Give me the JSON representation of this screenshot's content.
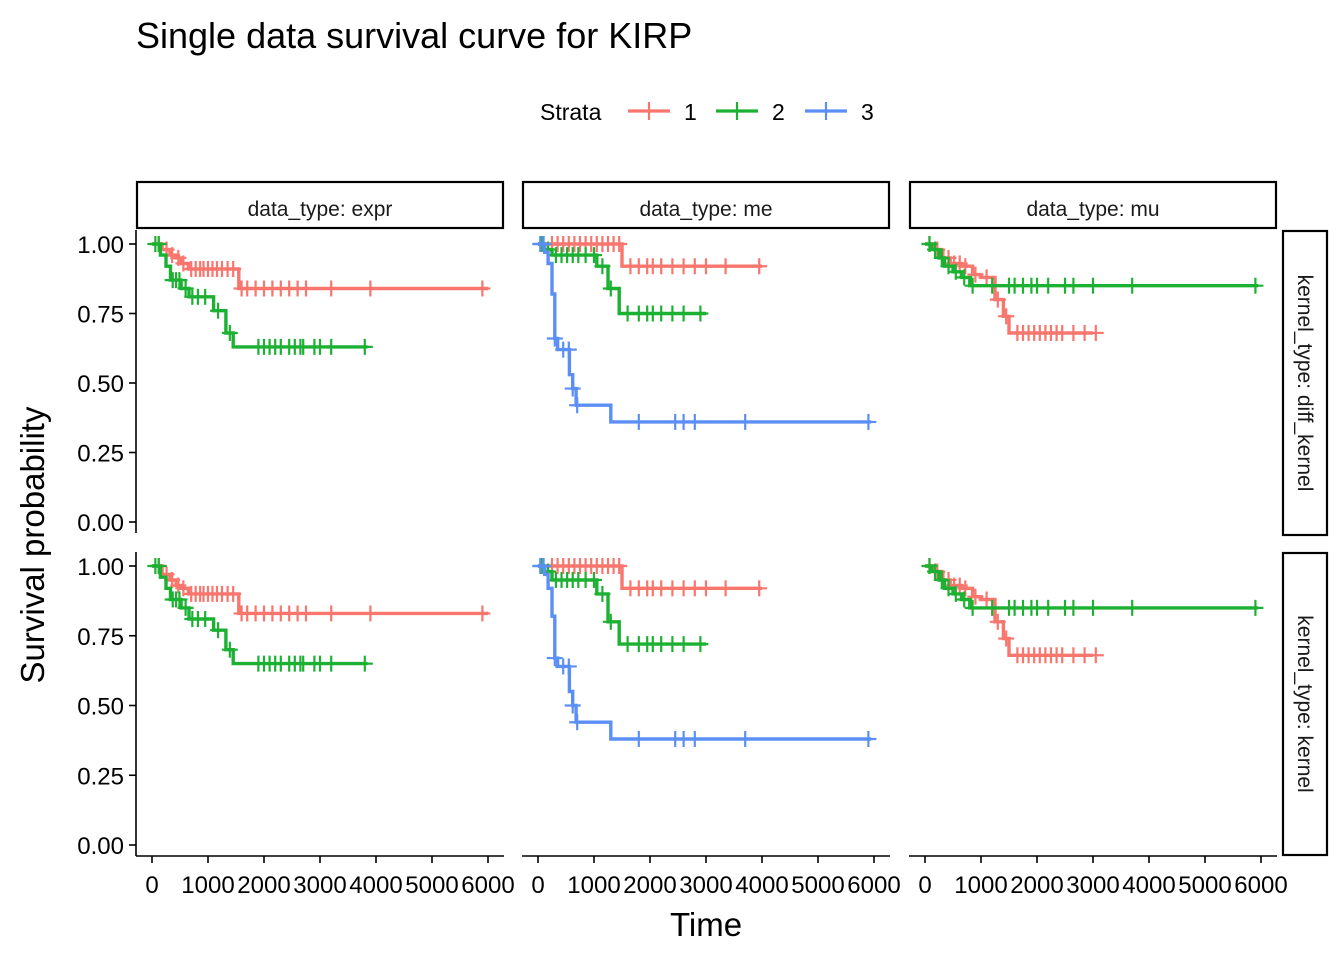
{
  "chart_data": {
    "type": "line",
    "title": "Single data survival curve for KIRP",
    "xlabel": "Time",
    "ylabel": "Survival probability",
    "xlim": [
      0,
      6000
    ],
    "ylim": [
      0,
      1
    ],
    "xticks": [
      "0",
      "1000",
      "2000",
      "3000",
      "4000",
      "5000",
      "6000"
    ],
    "yticks": [
      "0.00",
      "0.25",
      "0.50",
      "0.75",
      "1.00"
    ],
    "legend": {
      "title": "Strata",
      "position": "top",
      "items": [
        {
          "label": "1",
          "color": "#F8766D"
        },
        {
          "label": "2",
          "color": "#1DB133"
        },
        {
          "label": "3",
          "color": "#5B8FF5"
        }
      ]
    },
    "facet_cols": [
      "data_type: expr",
      "data_type: me",
      "data_type: mu"
    ],
    "facet_rows": [
      "kernel_type: diff_kernel",
      "kernel_type: kernel"
    ],
    "panels": [
      {
        "row": 0,
        "col": 0,
        "series": [
          {
            "name": "1",
            "steps": [
              [
                0,
                1.0
              ],
              [
                180,
                0.98
              ],
              [
                320,
                0.96
              ],
              [
                430,
                0.95
              ],
              [
                520,
                0.93
              ],
              [
                650,
                0.91
              ],
              [
                1550,
                0.84
              ],
              [
                6000,
                0.84
              ]
            ],
            "censors": [
              120,
              260,
              360,
              470,
              560,
              700,
              780,
              860,
              920,
              1000,
              1080,
              1160,
              1250,
              1350,
              1450,
              1600,
              1700,
              1850,
              2000,
              2150,
              2300,
              2450,
              2600,
              2750,
              3200,
              3900,
              5900
            ]
          },
          {
            "name": "2",
            "steps": [
              [
                0,
                1.0
              ],
              [
                150,
                0.96
              ],
              [
                250,
                0.92
              ],
              [
                330,
                0.87
              ],
              [
                520,
                0.84
              ],
              [
                660,
                0.81
              ],
              [
                1100,
                0.76
              ],
              [
                1320,
                0.68
              ],
              [
                1450,
                0.63
              ],
              [
                3850,
                0.63
              ]
            ],
            "censors": [
              60,
              120,
              370,
              430,
              490,
              600,
              720,
              820,
              950,
              1180,
              1390,
              1900,
              2000,
              2100,
              2200,
              2300,
              2450,
              2550,
              2650,
              2700,
              2900,
              3000,
              3200,
              3800
            ]
          }
        ]
      },
      {
        "row": 0,
        "col": 1,
        "series": [
          {
            "name": "1",
            "steps": [
              [
                0,
                1.0
              ],
              [
                1500,
                0.92
              ],
              [
                4000,
                0.92
              ]
            ],
            "censors": [
              250,
              350,
              450,
              550,
              650,
              750,
              850,
              950,
              1050,
              1150,
              1250,
              1350,
              1450,
              1650,
              1800,
              1950,
              2050,
              2200,
              2400,
              2600,
              2800,
              3000,
              3350,
              3950
            ]
          },
          {
            "name": "2",
            "steps": [
              [
                0,
                1.0
              ],
              [
                120,
                0.98
              ],
              [
                250,
                0.96
              ],
              [
                1050,
                0.92
              ],
              [
                1250,
                0.84
              ],
              [
                1450,
                0.75
              ],
              [
                3000,
                0.75
              ]
            ],
            "censors": [
              60,
              180,
              320,
              420,
              520,
              620,
              720,
              850,
              1000,
              1150,
              1300,
              1600,
              1800,
              1950,
              2050,
              2200,
              2400,
              2600,
              2900
            ]
          },
          {
            "name": "3",
            "steps": [
              [
                0,
                1.0
              ],
              [
                120,
                0.97
              ],
              [
                180,
                0.93
              ],
              [
                250,
                0.82
              ],
              [
                300,
                0.66
              ],
              [
                350,
                0.62
              ],
              [
                560,
                0.53
              ],
              [
                620,
                0.48
              ],
              [
                680,
                0.42
              ],
              [
                1300,
                0.36
              ],
              [
                5950,
                0.36
              ]
            ],
            "censors": [
              40,
              100,
              300,
              450,
              550,
              620,
              700,
              1800,
              2450,
              2600,
              2800,
              3700,
              5900
            ]
          }
        ]
      },
      {
        "row": 0,
        "col": 2,
        "series": [
          {
            "name": "1",
            "steps": [
              [
                0,
                1.0
              ],
              [
                150,
                0.98
              ],
              [
                300,
                0.95
              ],
              [
                450,
                0.93
              ],
              [
                650,
                0.92
              ],
              [
                850,
                0.89
              ],
              [
                1000,
                0.88
              ],
              [
                1250,
                0.8
              ],
              [
                1400,
                0.74
              ],
              [
                1500,
                0.68
              ],
              [
                3000,
                0.68
              ]
            ],
            "censors": [
              80,
              220,
              330,
              420,
              520,
              620,
              720,
              900,
              1100,
              1300,
              1450,
              1650,
              1750,
              1850,
              1950,
              2050,
              2150,
              2250,
              2350,
              2450,
              2650,
              2850,
              3050
            ]
          },
          {
            "name": "2",
            "steps": [
              [
                0,
                1.0
              ],
              [
                120,
                0.98
              ],
              [
                250,
                0.95
              ],
              [
                350,
                0.92
              ],
              [
                500,
                0.9
              ],
              [
                650,
                0.88
              ],
              [
                800,
                0.85
              ],
              [
                5950,
                0.85
              ]
            ],
            "censors": [
              80,
              180,
              300,
              420,
              550,
              700,
              850,
              1200,
              1500,
              1600,
              1750,
              1900,
              2000,
              2200,
              2500,
              2650,
              3000,
              3700,
              5900
            ]
          }
        ]
      },
      {
        "row": 1,
        "col": 0,
        "series": [
          {
            "name": "1",
            "steps": [
              [
                0,
                1.0
              ],
              [
                180,
                0.97
              ],
              [
                320,
                0.95
              ],
              [
                430,
                0.93
              ],
              [
                520,
                0.92
              ],
              [
                650,
                0.9
              ],
              [
                1550,
                0.83
              ],
              [
                6000,
                0.83
              ]
            ],
            "censors": [
              120,
              260,
              360,
              470,
              560,
              700,
              780,
              860,
              920,
              1000,
              1080,
              1160,
              1250,
              1350,
              1450,
              1600,
              1700,
              1850,
              2000,
              2150,
              2300,
              2450,
              2600,
              2750,
              3200,
              3900,
              5900
            ]
          },
          {
            "name": "2",
            "steps": [
              [
                0,
                1.0
              ],
              [
                150,
                0.96
              ],
              [
                250,
                0.92
              ],
              [
                330,
                0.88
              ],
              [
                520,
                0.85
              ],
              [
                660,
                0.81
              ],
              [
                1100,
                0.77
              ],
              [
                1320,
                0.7
              ],
              [
                1450,
                0.65
              ],
              [
                3850,
                0.65
              ]
            ],
            "censors": [
              60,
              120,
              370,
              430,
              490,
              600,
              720,
              820,
              950,
              1180,
              1390,
              1900,
              2000,
              2100,
              2200,
              2300,
              2450,
              2550,
              2650,
              2700,
              2900,
              3000,
              3200,
              3800
            ]
          }
        ]
      },
      {
        "row": 1,
        "col": 1,
        "series": [
          {
            "name": "1",
            "steps": [
              [
                0,
                1.0
              ],
              [
                1500,
                0.92
              ],
              [
                4000,
                0.92
              ]
            ],
            "censors": [
              250,
              350,
              450,
              550,
              650,
              750,
              850,
              950,
              1050,
              1150,
              1250,
              1350,
              1450,
              1650,
              1800,
              1950,
              2050,
              2200,
              2400,
              2600,
              2800,
              3000,
              3350,
              3950
            ]
          },
          {
            "name": "2",
            "steps": [
              [
                0,
                1.0
              ],
              [
                120,
                0.98
              ],
              [
                250,
                0.95
              ],
              [
                1050,
                0.9
              ],
              [
                1250,
                0.8
              ],
              [
                1450,
                0.72
              ],
              [
                3000,
                0.72
              ]
            ],
            "censors": [
              60,
              180,
              320,
              420,
              520,
              620,
              720,
              850,
              1000,
              1150,
              1300,
              1600,
              1800,
              1950,
              2050,
              2200,
              2400,
              2600,
              2900
            ]
          },
          {
            "name": "3",
            "steps": [
              [
                0,
                1.0
              ],
              [
                120,
                0.97
              ],
              [
                180,
                0.92
              ],
              [
                250,
                0.82
              ],
              [
                300,
                0.67
              ],
              [
                350,
                0.64
              ],
              [
                560,
                0.55
              ],
              [
                620,
                0.5
              ],
              [
                680,
                0.44
              ],
              [
                1300,
                0.38
              ],
              [
                5950,
                0.38
              ]
            ],
            "censors": [
              40,
              100,
              300,
              450,
              550,
              620,
              700,
              1800,
              2450,
              2600,
              2800,
              3700,
              5900
            ]
          }
        ]
      },
      {
        "row": 1,
        "col": 2,
        "series": [
          {
            "name": "1",
            "steps": [
              [
                0,
                1.0
              ],
              [
                150,
                0.98
              ],
              [
                300,
                0.95
              ],
              [
                450,
                0.93
              ],
              [
                650,
                0.92
              ],
              [
                850,
                0.89
              ],
              [
                1000,
                0.88
              ],
              [
                1250,
                0.8
              ],
              [
                1400,
                0.74
              ],
              [
                1500,
                0.68
              ],
              [
                3000,
                0.68
              ]
            ],
            "censors": [
              80,
              220,
              330,
              420,
              520,
              620,
              720,
              900,
              1100,
              1300,
              1450,
              1650,
              1750,
              1850,
              1950,
              2050,
              2150,
              2250,
              2350,
              2450,
              2650,
              2850,
              3050
            ]
          },
          {
            "name": "2",
            "steps": [
              [
                0,
                1.0
              ],
              [
                120,
                0.98
              ],
              [
                250,
                0.95
              ],
              [
                350,
                0.92
              ],
              [
                500,
                0.9
              ],
              [
                650,
                0.88
              ],
              [
                800,
                0.85
              ],
              [
                5950,
                0.85
              ]
            ],
            "censors": [
              80,
              180,
              300,
              420,
              550,
              700,
              850,
              1200,
              1500,
              1600,
              1750,
              1900,
              2000,
              2200,
              2500,
              2650,
              3000,
              3700,
              5900
            ]
          }
        ]
      }
    ]
  }
}
